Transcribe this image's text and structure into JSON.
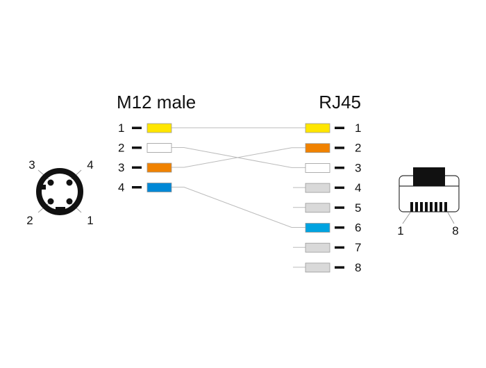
{
  "left_heading": "M12 male",
  "right_heading": "RJ45",
  "m12_pins": [
    {
      "label": "1",
      "color": "#ffe600",
      "to": 1
    },
    {
      "label": "2",
      "color": "#ffffff",
      "to": 3
    },
    {
      "label": "3",
      "color": "#f08200",
      "to": 2
    },
    {
      "label": "4",
      "color": "#0088d6",
      "to": 6
    }
  ],
  "rj45_pins": [
    {
      "label": "1",
      "color": "#ffe600"
    },
    {
      "label": "2",
      "color": "#f08200"
    },
    {
      "label": "3",
      "color": "#ffffff"
    },
    {
      "label": "4",
      "color": "#d9d9d9"
    },
    {
      "label": "5",
      "color": "#d9d9d9"
    },
    {
      "label": "6",
      "color": "#00a3e0"
    },
    {
      "label": "7",
      "color": "#d9d9d9"
    },
    {
      "label": "8",
      "color": "#d9d9d9"
    }
  ],
  "m12_face_labels": {
    "p1": "1",
    "p2": "2",
    "p3": "3",
    "p4": "4"
  },
  "rj45_face_labels": {
    "first": "1",
    "last": "8"
  }
}
